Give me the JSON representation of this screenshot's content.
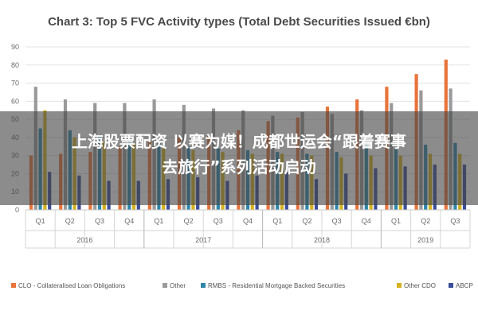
{
  "chart_data": {
    "type": "bar",
    "title": "Chart 3: Top 5 FVC Activity types (Total Debt Securities Issued €bn)",
    "xlabel": "",
    "ylabel": "",
    "ylim": [
      0,
      90
    ],
    "yticks": [
      0,
      10,
      20,
      30,
      40,
      50,
      60,
      70,
      80,
      90
    ],
    "grid": true,
    "legend_position": "bottom",
    "categories": [
      "Q1",
      "Q2",
      "Q3",
      "Q4",
      "Q1",
      "Q2",
      "Q3",
      "Q4",
      "Q1",
      "Q2",
      "Q3",
      "Q4",
      "Q1",
      "Q2",
      "Q3"
    ],
    "groups": [
      {
        "label": "2016",
        "count": 4
      },
      {
        "label": "2017",
        "count": 4
      },
      {
        "label": "2018",
        "count": 4
      },
      {
        "label": "2019",
        "count": 3
      }
    ],
    "series": [
      {
        "name": "CLO - Collateralised Loan Obligations",
        "color": "#e8743b",
        "values": [
          30,
          31,
          32,
          35,
          38,
          40,
          41,
          44,
          49,
          51,
          57,
          61,
          68,
          75,
          83
        ]
      },
      {
        "name": "Other",
        "color": "#9a9a9a",
        "values": [
          68,
          61,
          59,
          59,
          61,
          58,
          56,
          55,
          52,
          54,
          53,
          55,
          59,
          66,
          67
        ]
      },
      {
        "name": "RMBS - Residential Mortgage Backed Securities",
        "color": "#2e86a8",
        "values": [
          45,
          44,
          41,
          39,
          37,
          35,
          34,
          33,
          32,
          31,
          32,
          37,
          34,
          36,
          37
        ]
      },
      {
        "name": "Other CDO",
        "color": "#d4b21f",
        "values": [
          55,
          40,
          38,
          36,
          34,
          33,
          32,
          31,
          31,
          30,
          29,
          30,
          30,
          31,
          31
        ]
      },
      {
        "name": "ABCP",
        "color": "#3b4e9a",
        "values": [
          21,
          19,
          16,
          16,
          17,
          18,
          16,
          19,
          21,
          17,
          20,
          23,
          24,
          25,
          25
        ]
      }
    ]
  },
  "overlay": {
    "text": "上海股票配资 以赛为媒！成都世运会“跟着赛事\n去旅行”系列活动启动"
  }
}
